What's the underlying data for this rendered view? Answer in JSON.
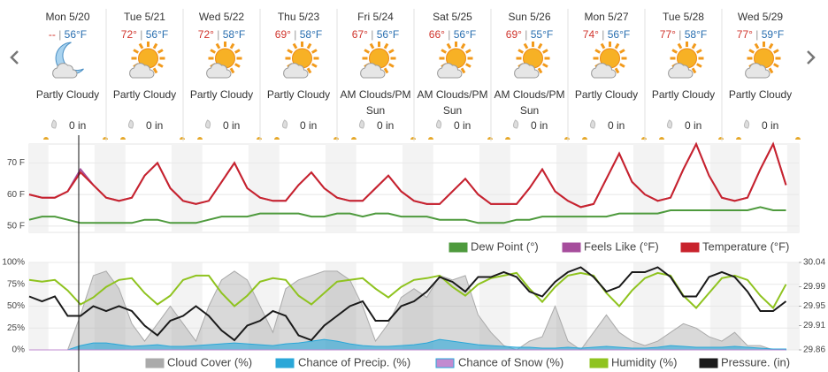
{
  "days": [
    {
      "day": "Mon 5/20",
      "hi": "--",
      "lo": "56°F",
      "condition": "Partly Cloudy",
      "precip": "0 in"
    },
    {
      "day": "Tue 5/21",
      "hi": "72°",
      "lo": "56°F",
      "condition": "Partly Cloudy",
      "precip": "0 in"
    },
    {
      "day": "Wed 5/22",
      "hi": "72°",
      "lo": "58°F",
      "condition": "Partly Cloudy",
      "precip": "0 in"
    },
    {
      "day": "Thu 5/23",
      "hi": "69°",
      "lo": "58°F",
      "condition": "Partly Cloudy",
      "precip": "0 in"
    },
    {
      "day": "Fri 5/24",
      "hi": "67°",
      "lo": "56°F",
      "condition": "AM Clouds/PM Sun",
      "precip": "0 in"
    },
    {
      "day": "Sat 5/25",
      "hi": "66°",
      "lo": "56°F",
      "condition": "AM Clouds/PM Sun",
      "precip": "0 in"
    },
    {
      "day": "Sun 5/26",
      "hi": "69°",
      "lo": "55°F",
      "condition": "AM Clouds/PM Sun",
      "precip": "0 in"
    },
    {
      "day": "Mon 5/27",
      "hi": "74°",
      "lo": "56°F",
      "condition": "Partly Cloudy",
      "precip": "0 in"
    },
    {
      "day": "Tue 5/28",
      "hi": "77°",
      "lo": "58°F",
      "condition": "Partly Cloudy",
      "precip": "0 in"
    },
    {
      "day": "Wed 5/29",
      "hi": "77°",
      "lo": "59°F",
      "condition": "Partly Cloudy",
      "precip": "0 in"
    }
  ],
  "chart_data": [
    {
      "type": "line",
      "ylim": [
        48,
        76
      ],
      "yticks": [
        {
          "value": 50,
          "label": "50 F"
        },
        {
          "value": 60,
          "label": "60 F"
        },
        {
          "value": 70,
          "label": "70 F"
        }
      ],
      "series": [
        {
          "name": "Dew Point (°)",
          "color": "#4e9a3d",
          "values": [
            52,
            53,
            53,
            52,
            51,
            51,
            51,
            51,
            51,
            52,
            52,
            51,
            51,
            51,
            52,
            53,
            53,
            53,
            54,
            54,
            54,
            54,
            53,
            53,
            54,
            54,
            53,
            54,
            54,
            53,
            53,
            53,
            52,
            52,
            52,
            51,
            51,
            51,
            52,
            52,
            53,
            53,
            53,
            53,
            53,
            53,
            54,
            54,
            54,
            54,
            55,
            55,
            55,
            55,
            55,
            55,
            55,
            56,
            55,
            55
          ]
        },
        {
          "name": "Feels Like (°F)",
          "color": "#a64d9c",
          "values": [
            60,
            59,
            59,
            61,
            68,
            63,
            59,
            58,
            59,
            66,
            70,
            62,
            58,
            57,
            58,
            64,
            70,
            62,
            59,
            58,
            58,
            63,
            67,
            62,
            59,
            58,
            58,
            62,
            66,
            61,
            58,
            57,
            57,
            61,
            65,
            60,
            57,
            57,
            57,
            62,
            68,
            61,
            58,
            56,
            57,
            65,
            73,
            64,
            60,
            58,
            59,
            68,
            76,
            66,
            59,
            58,
            59,
            68,
            76,
            63
          ]
        },
        {
          "name": "Temperature (°F)",
          "color": "#c8232c",
          "values": [
            60,
            59,
            59,
            61,
            67,
            63,
            59,
            58,
            59,
            66,
            70,
            62,
            58,
            57,
            58,
            64,
            70,
            62,
            59,
            58,
            58,
            63,
            67,
            62,
            59,
            58,
            58,
            62,
            66,
            61,
            58,
            57,
            57,
            61,
            65,
            60,
            57,
            57,
            57,
            62,
            68,
            61,
            58,
            56,
            57,
            65,
            73,
            64,
            60,
            58,
            59,
            68,
            76,
            66,
            59,
            58,
            59,
            68,
            76,
            63
          ]
        }
      ]
    },
    {
      "type": "area",
      "ylim": [
        0,
        100
      ],
      "yticks": [
        {
          "value": 0,
          "label": "0%"
        },
        {
          "value": 25,
          "label": "25%"
        },
        {
          "value": 50,
          "label": "50%"
        },
        {
          "value": 75,
          "label": "75%"
        },
        {
          "value": 100,
          "label": "100%"
        }
      ],
      "y2lim": [
        29.86,
        30.04
      ],
      "y2ticks": [
        29.86,
        29.91,
        29.95,
        29.99,
        30.04
      ],
      "series": [
        {
          "name": "Cloud Cover (%)",
          "color": "#aaaaaa",
          "values": [
            0,
            0,
            0,
            0,
            40,
            85,
            90,
            70,
            30,
            10,
            30,
            50,
            30,
            10,
            50,
            80,
            90,
            80,
            50,
            20,
            70,
            80,
            85,
            90,
            90,
            80,
            50,
            10,
            30,
            60,
            70,
            60,
            85,
            80,
            85,
            40,
            20,
            5,
            0,
            10,
            15,
            50,
            10,
            0,
            20,
            40,
            20,
            10,
            5,
            10,
            20,
            30,
            25,
            15,
            10,
            20,
            5,
            5,
            0,
            0
          ]
        },
        {
          "name": "Chance of Precip. (%)",
          "color": "#2aa7d8",
          "values": [
            0,
            0,
            0,
            0,
            5,
            8,
            8,
            6,
            4,
            5,
            6,
            4,
            4,
            5,
            6,
            7,
            8,
            7,
            6,
            5,
            7,
            8,
            10,
            12,
            10,
            7,
            5,
            4,
            4,
            5,
            6,
            8,
            12,
            10,
            8,
            6,
            5,
            4,
            3,
            3,
            2,
            2,
            3,
            2,
            3,
            4,
            3,
            2,
            2,
            3,
            5,
            4,
            3,
            3,
            3,
            4,
            3,
            2,
            1,
            1
          ]
        },
        {
          "name": "Chance of Snow (%)",
          "color": "#c28bd0",
          "values": [
            0,
            0,
            0,
            0,
            0,
            0,
            0,
            0,
            0,
            0,
            0,
            0,
            0,
            0,
            0,
            0,
            0,
            0,
            0,
            0,
            0,
            0,
            0,
            0,
            0,
            0,
            0,
            0,
            0,
            0,
            0,
            0,
            0,
            0,
            0,
            0,
            0,
            0,
            0,
            0,
            0,
            0,
            0,
            0,
            0,
            0,
            0,
            0,
            0,
            0,
            0,
            0,
            0,
            0,
            0,
            0,
            0,
            0,
            0,
            0
          ]
        },
        {
          "name": "Humidity (%)",
          "color": "#8fc31f",
          "values": [
            80,
            78,
            80,
            68,
            52,
            60,
            72,
            80,
            82,
            65,
            52,
            62,
            80,
            85,
            85,
            65,
            50,
            62,
            78,
            82,
            80,
            62,
            52,
            65,
            78,
            80,
            82,
            70,
            60,
            72,
            80,
            82,
            85,
            72,
            62,
            75,
            82,
            85,
            88,
            70,
            55,
            72,
            85,
            88,
            85,
            65,
            50,
            68,
            82,
            88,
            85,
            62,
            48,
            65,
            82,
            85,
            80,
            62,
            48,
            75
          ]
        },
        {
          "name": "Pressure. (in)",
          "color": "#1a1a1a",
          "axis": "y2",
          "values": [
            29.97,
            29.96,
            29.97,
            29.93,
            29.93,
            29.95,
            29.94,
            29.95,
            29.94,
            29.91,
            29.89,
            29.92,
            29.93,
            29.95,
            29.93,
            29.9,
            29.88,
            29.91,
            29.92,
            29.94,
            29.93,
            29.89,
            29.88,
            29.91,
            29.93,
            29.95,
            29.96,
            29.92,
            29.92,
            29.95,
            29.96,
            29.98,
            30.01,
            30.0,
            29.98,
            30.01,
            30.01,
            30.02,
            30.01,
            29.98,
            29.97,
            30.0,
            30.02,
            30.03,
            30.01,
            29.98,
            29.99,
            30.02,
            30.02,
            30.03,
            30.01,
            29.97,
            29.97,
            30.01,
            30.02,
            30.01,
            29.98,
            29.94,
            29.94,
            29.96
          ]
        }
      ]
    }
  ]
}
